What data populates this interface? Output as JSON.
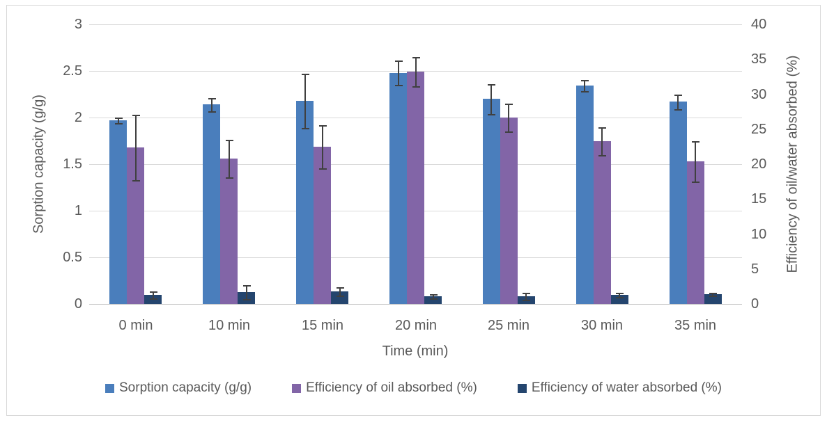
{
  "styles": {
    "background": "#ffffff",
    "border_color": "#d8d8d8",
    "grid_color": "#d9d9d9",
    "axis_line_color": "#bfbfbf",
    "text_color": "#595959",
    "error_bar_color": "#404040",
    "series_colors": [
      "#4a7ebc",
      "#8265a7",
      "#24456e"
    ]
  },
  "chart_data": {
    "type": "bar",
    "title": "",
    "categories": [
      "0 min",
      "10 min",
      "15 min",
      "20 min",
      "25 min",
      "30 min",
      "35 min"
    ],
    "xlabel": "Time (min)",
    "left_axis": {
      "label": "Sorption capacity (g/g)",
      "min": 0,
      "max": 3,
      "tick_labels": [
        "0",
        "0.5",
        "1",
        "1.5",
        "2",
        "2.5",
        "3"
      ],
      "tick_values": [
        0,
        0.5,
        1,
        1.5,
        2,
        2.5,
        3
      ]
    },
    "right_axis": {
      "label": "Efficiency of oil/water absorbed (%)",
      "min": 0,
      "max": 40,
      "tick_labels": [
        "0",
        "5",
        "10",
        "15",
        "20",
        "25",
        "30",
        "35",
        "40"
      ],
      "tick_values": [
        0,
        5,
        10,
        15,
        20,
        25,
        30,
        35,
        40
      ]
    },
    "grid": true,
    "legend_position": "bottom",
    "error_bars": true,
    "series": [
      {
        "name": "Sorption capacity (g/g)",
        "axis": "left",
        "color": "#4a7ebc",
        "values": [
          1.97,
          2.14,
          2.18,
          2.48,
          2.2,
          2.34,
          2.17
        ],
        "errors": [
          0.03,
          0.07,
          0.29,
          0.13,
          0.16,
          0.06,
          0.08
        ]
      },
      {
        "name": "Efficiency of oil absorbed (%)",
        "axis": "right",
        "color": "#8265a7",
        "values": [
          22.4,
          20.8,
          22.5,
          33.2,
          26.7,
          23.3,
          20.4
        ],
        "errors": [
          4.7,
          2.7,
          3.1,
          2.1,
          2.0,
          2.0,
          2.9
        ]
      },
      {
        "name": "Efficiency of water absorbed (%)",
        "axis": "right",
        "color": "#24456e",
        "values": [
          1.3,
          1.7,
          1.8,
          1.1,
          1.1,
          1.3,
          1.4
        ],
        "errors": [
          0.5,
          1.0,
          0.6,
          0.3,
          0.5,
          0.3,
          0.2
        ]
      }
    ]
  }
}
